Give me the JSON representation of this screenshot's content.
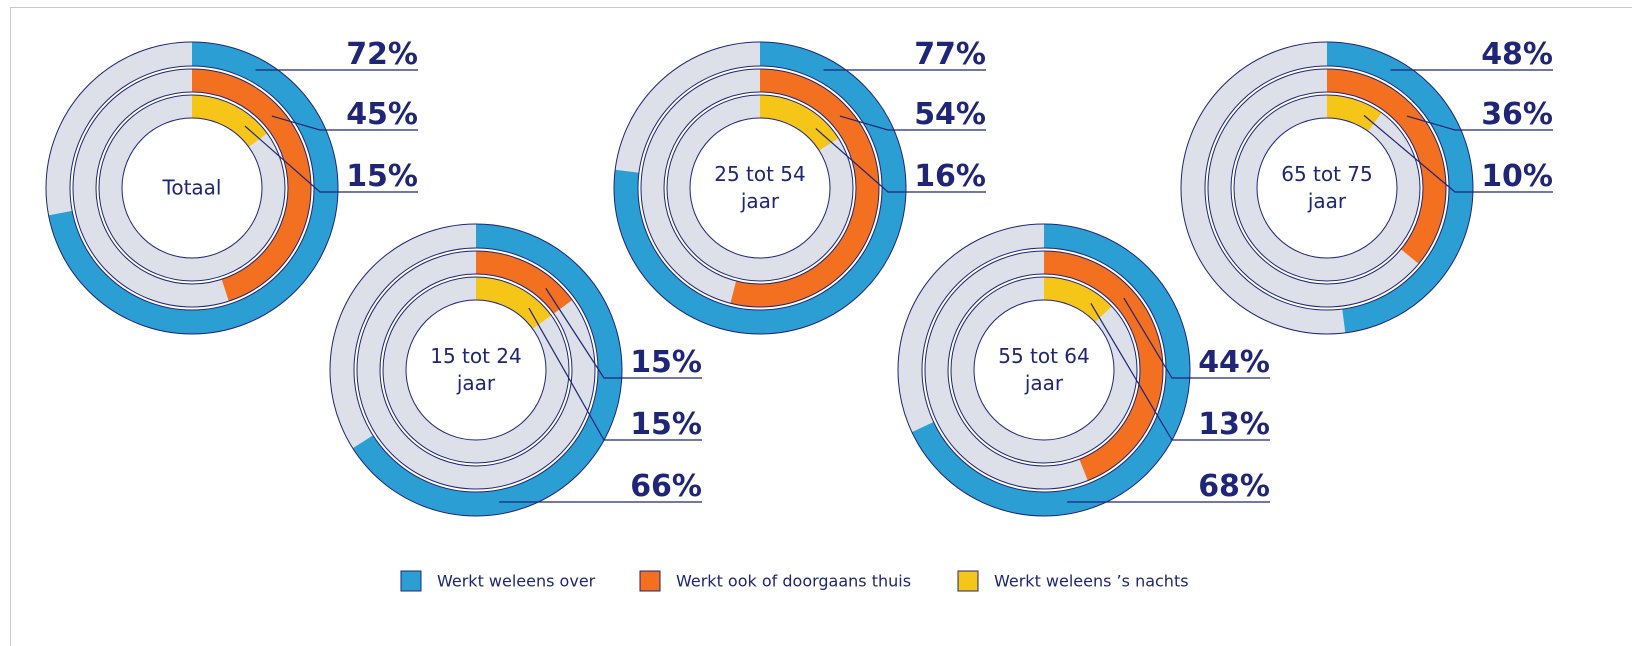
{
  "chart_data": {
    "type": "donut",
    "categories": [
      "Totaal",
      "15 tot 24 jaar",
      "25 tot 54 jaar",
      "55 tot 64 jaar",
      "65 tot 75 jaar"
    ],
    "series": [
      {
        "name": "Werkt weleens over",
        "color": "#2b9fd4",
        "values": [
          72,
          66,
          77,
          68,
          48
        ],
        "value_labels": [
          "72%",
          "66%",
          "77%",
          "68%",
          "48%"
        ]
      },
      {
        "name": "Werkt ook of doorgaans thuis",
        "color": "#f37021",
        "values": [
          45,
          15,
          54,
          44,
          36
        ],
        "value_labels": [
          "45%",
          "15%",
          "54%",
          "44%",
          "36%"
        ]
      },
      {
        "name": "Werkt weleens ’s nachts",
        "color": "#f5c518",
        "values": [
          15,
          15,
          16,
          13,
          10
        ],
        "value_labels": [
          "15%",
          "15%",
          "16%",
          "13%",
          "10%"
        ]
      }
    ],
    "track_color": "#dde0e8",
    "legend": "bottom"
  }
}
